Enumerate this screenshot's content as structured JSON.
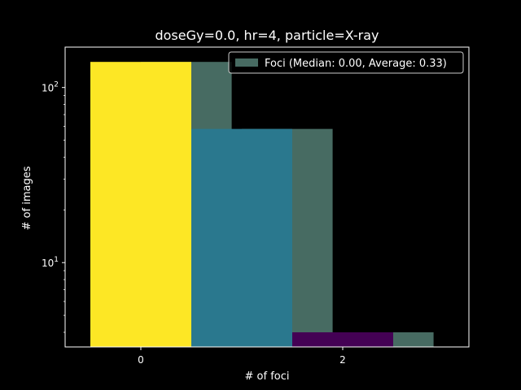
{
  "chart_data": {
    "type": "bar",
    "title": "doseGy=0.0, hr=4, particle=X-ray",
    "xlabel": "# of foci",
    "ylabel": "# of images",
    "x_scale": "linear",
    "y_scale": "log",
    "xlim": [
      -0.75,
      3.25
    ],
    "ylim": [
      3.3,
      170
    ],
    "x_ticks": [
      0,
      2
    ],
    "y_ticks": [
      10,
      100
    ],
    "y_tick_labels": [
      {
        "base": "10",
        "exp": "1"
      },
      {
        "base": "10",
        "exp": "2"
      }
    ],
    "series": [
      {
        "name": "Foci (Median: 0.00, Average: 0.33)",
        "color": "#476b62",
        "bars": [
          {
            "x_start": 0,
            "x_end": 0.9,
            "value": 140
          },
          {
            "x_start": 1,
            "x_end": 1.9,
            "value": 58
          },
          {
            "x_start": 2,
            "x_end": 2.9,
            "value": 4
          }
        ]
      }
    ],
    "overlay_bars": [
      {
        "x_start": -0.5,
        "x_end": 0.5,
        "value": 140,
        "color": "#fde725"
      },
      {
        "x_start": 0.5,
        "x_end": 1.5,
        "value": 58,
        "color": "#2a788e"
      },
      {
        "x_start": 1.5,
        "x_end": 2.5,
        "value": 4,
        "color": "#440154"
      }
    ],
    "legend_position": "top-right",
    "grid": false
  }
}
